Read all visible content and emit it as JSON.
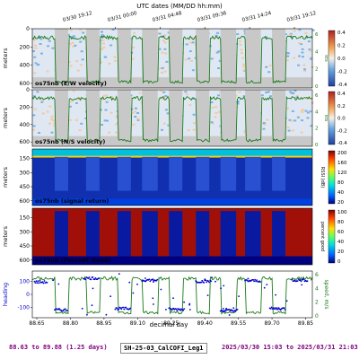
{
  "figure": {
    "top_axis_label": "UTC dates (MM/DD hh:mm)",
    "top_ticks": [
      {
        "label": "03/30 19:12",
        "day": 88.8
      },
      {
        "label": "03/31 00:00",
        "day": 89.0
      },
      {
        "label": "03/31 04:48",
        "day": 89.2
      },
      {
        "label": "03/31 09:36",
        "day": 89.4
      },
      {
        "label": "03/31 14:24",
        "day": 89.6
      },
      {
        "label": "03/31 19:12",
        "day": 89.8
      }
    ],
    "bottom_axis_label": "decimal day",
    "bottom_ticks": [
      "88.65",
      "88.80",
      "88.95",
      "89.10",
      "89.25",
      "89.40",
      "89.55",
      "89.70",
      "89.85"
    ],
    "xlim": [
      88.63,
      89.88
    ]
  },
  "chart_data": [
    {
      "type": "heatmap",
      "title": "os75nb (E/W velocity)",
      "ylabel": "meters",
      "yticks": [
        "0",
        "200",
        "400",
        "600"
      ],
      "ylim": [
        650,
        0
      ],
      "colorbar": {
        "ticks": [
          "0.4",
          "0.2",
          "0.0",
          "-0.2",
          "-0.4"
        ],
        "range": [
          -0.4,
          0.4
        ],
        "colors": [
          "#2040a0",
          "#6aa8e0",
          "#f4f0e8",
          "#f0a050",
          "#b02020"
        ]
      },
      "overlay_axis": {
        "label": "kts",
        "ticks": [
          "0",
          "2",
          "4",
          "6"
        ],
        "color": "#1a7a1a"
      }
    },
    {
      "type": "heatmap",
      "title": "os75nb (N/S velocity)",
      "ylabel": "meters",
      "yticks": [
        "0",
        "200",
        "400",
        "600"
      ],
      "ylim": [
        650,
        0
      ],
      "colorbar": {
        "ticks": [
          "0.4",
          "0.2",
          "0.0",
          "-0.2",
          "-0.4"
        ],
        "range": [
          -0.4,
          0.4
        ],
        "colors": [
          "#2040a0",
          "#6aa8e0",
          "#f4f0e8",
          "#f0a050",
          "#b02020"
        ]
      },
      "overlay_axis": {
        "label": "kts",
        "ticks": [
          "0",
          "2",
          "4",
          "6"
        ],
        "color": "#1a7a1a"
      }
    },
    {
      "type": "heatmap",
      "title": "os75nb (signal return)",
      "ylabel": "meters",
      "yticks": [
        "150",
        "300",
        "450",
        "600"
      ],
      "ylim": [
        650,
        50
      ],
      "colorbar": {
        "ticks": [
          "200",
          "160",
          "120",
          "80",
          "40",
          "20"
        ],
        "label": "RSSI (dB)",
        "colors": [
          "#00007f",
          "#0060ff",
          "#00e0e0",
          "#60ff60",
          "#ffe000",
          "#ff4000",
          "#800000"
        ]
      }
    },
    {
      "type": "heatmap",
      "title": "os75nb (Percent Good)",
      "ylabel": "meters",
      "yticks": [
        "150",
        "300",
        "450",
        "600"
      ],
      "ylim": [
        650,
        50
      ],
      "colorbar": {
        "ticks": [
          "100",
          "80",
          "60",
          "40",
          "20",
          "0"
        ],
        "label": "percent good",
        "colors": [
          "#00007f",
          "#0060ff",
          "#00e0e0",
          "#60ff60",
          "#ffe000",
          "#ff4000",
          "#800000"
        ]
      }
    },
    {
      "type": "scatter",
      "ylabel": "heading",
      "yticks": [
        "100",
        "0",
        "-100"
      ],
      "ylim": [
        -180,
        180
      ],
      "right_axis": {
        "label": "speed, m/s",
        "ticks": [
          "0",
          "2",
          "4",
          "6"
        ],
        "color": "#1a7a1a"
      },
      "series": [
        {
          "values_by_segment": [
            {
              "x": [
                88.64,
                88.7
              ],
              "y": 95
            },
            {
              "x": [
                88.73,
                88.79
              ],
              "y": -120
            },
            {
              "x": [
                88.86,
                88.93
              ],
              "y": 125
            },
            {
              "x": [
                89.0,
                89.07
              ],
              "y": -110
            },
            {
              "x": [
                89.12,
                89.19
              ],
              "y": 110
            },
            {
              "x": [
                89.24,
                89.31
              ],
              "y": -115
            },
            {
              "x": [
                89.36,
                89.43
              ],
              "y": 100
            },
            {
              "x": [
                89.47,
                89.55
              ],
              "y": -125
            },
            {
              "x": [
                89.58,
                89.65
              ],
              "y": 105
            },
            {
              "x": [
                89.69,
                89.76
              ],
              "y": -110
            },
            {
              "x": [
                89.79,
                89.86
              ],
              "y": 110
            }
          ],
          "color": "#0000cc"
        }
      ]
    }
  ],
  "footer": {
    "range_text": "88.63 to 89.88 (1.25 days)",
    "cruise_label": "SH-25-03_CalCOFI_Leg1",
    "date_text": "2025/03/30 15:03 to 2025/03/31 21:03"
  }
}
